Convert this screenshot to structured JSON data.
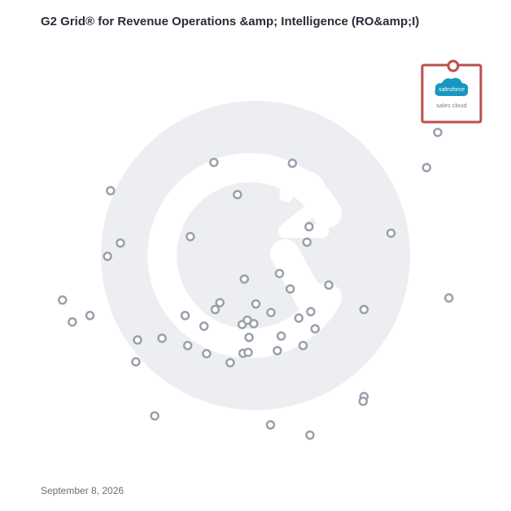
{
  "title": "G2 Grid® for Revenue Operations &amp; Intelligence (RO&amp;I)",
  "date": "September 8, 2026",
  "colors": {
    "frame_top_left": "#5a46c8",
    "frame_top_right": "#f0603a",
    "frame_bottom_left": "#1fa3e0",
    "frame_bottom_right": "#7b3fb8",
    "point": "#9aa0ab",
    "highlight": "#b9504e",
    "watermark": "#eceef1",
    "salesforce_blue": "#1798c1"
  },
  "chart_data": {
    "type": "scatter",
    "xlim": [
      0,
      100
    ],
    "ylim": [
      0,
      100
    ],
    "grid": false,
    "quadrant_split": {
      "x": 50,
      "y": 50
    },
    "points": [
      {
        "x": 16.1,
        "y": 65.2
      },
      {
        "x": 18.4,
        "y": 53.0
      },
      {
        "x": 15.4,
        "y": 49.9
      },
      {
        "x": 40.2,
        "y": 71.8
      },
      {
        "x": 45.7,
        "y": 64.3
      },
      {
        "x": 34.7,
        "y": 54.5
      },
      {
        "x": 58.5,
        "y": 71.6
      },
      {
        "x": 62.4,
        "y": 56.8
      },
      {
        "x": 61.9,
        "y": 53.2
      },
      {
        "x": 81.5,
        "y": 55.3
      },
      {
        "x": 89.8,
        "y": 70.6
      },
      {
        "x": 92.4,
        "y": 78.8
      },
      {
        "x": 4.9,
        "y": 39.7
      },
      {
        "x": 7.2,
        "y": 34.6
      },
      {
        "x": 11.3,
        "y": 36.1
      },
      {
        "x": 22.4,
        "y": 30.4
      },
      {
        "x": 22.0,
        "y": 25.3
      },
      {
        "x": 28.1,
        "y": 30.8
      },
      {
        "x": 33.5,
        "y": 36.1
      },
      {
        "x": 34.1,
        "y": 29.1
      },
      {
        "x": 37.9,
        "y": 33.6
      },
      {
        "x": 38.5,
        "y": 27.2
      },
      {
        "x": 40.5,
        "y": 37.5
      },
      {
        "x": 41.6,
        "y": 39.1
      },
      {
        "x": 47.3,
        "y": 44.6
      },
      {
        "x": 44.0,
        "y": 25.1
      },
      {
        "x": 47.0,
        "y": 27.3
      },
      {
        "x": 48.2,
        "y": 27.5
      },
      {
        "x": 46.8,
        "y": 34.0
      },
      {
        "x": 48.0,
        "y": 35.0
      },
      {
        "x": 48.4,
        "y": 31.0
      },
      {
        "x": 49.5,
        "y": 34.2
      },
      {
        "x": 50.0,
        "y": 38.8
      },
      {
        "x": 53.5,
        "y": 36.8
      },
      {
        "x": 55.5,
        "y": 45.9
      },
      {
        "x": 58.0,
        "y": 42.3
      },
      {
        "x": 55.0,
        "y": 27.9
      },
      {
        "x": 55.9,
        "y": 31.3
      },
      {
        "x": 60.0,
        "y": 35.5
      },
      {
        "x": 62.8,
        "y": 37.0
      },
      {
        "x": 63.8,
        "y": 33.0
      },
      {
        "x": 61.0,
        "y": 29.1
      },
      {
        "x": 67.0,
        "y": 43.2
      },
      {
        "x": 75.2,
        "y": 37.5
      },
      {
        "x": 75.2,
        "y": 17.2
      },
      {
        "x": 75.0,
        "y": 16.1
      },
      {
        "x": 95.0,
        "y": 40.2
      },
      {
        "x": 26.4,
        "y": 12.7
      },
      {
        "x": 53.4,
        "y": 10.6
      },
      {
        "x": 62.6,
        "y": 8.2
      }
    ],
    "highlight": {
      "label": "salesforce",
      "sublabel": "sales cloud",
      "x": 96.0,
      "y": 94.3
    }
  }
}
